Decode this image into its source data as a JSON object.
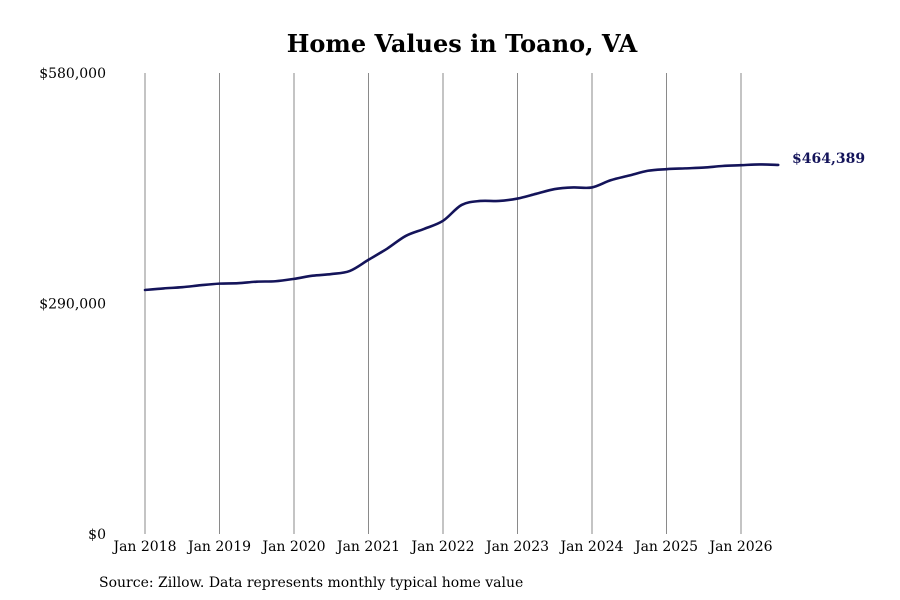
{
  "colors": {
    "line": "#14145a",
    "grid": "#8a8a8a",
    "background": "#ffffff"
  },
  "chart_data": {
    "type": "line",
    "title": "Home Values in Toano, VA",
    "xlabel": "",
    "ylabel": "",
    "source": "Source: Zillow. Data represents monthly typical home value",
    "x_tick_labels": [
      "Jan 2018",
      "Jan 2019",
      "Jan 2020",
      "Jan 2021",
      "Jan 2022",
      "Jan 2023",
      "Jan 2024",
      "Jan 2025",
      "Jan 2026"
    ],
    "y_tick_labels": [
      "$0",
      "$290,000",
      "$580,000"
    ],
    "y_ticks": [
      0,
      290000,
      580000
    ],
    "ylim": [
      0,
      580000
    ],
    "xlim": [
      "2018-01",
      "2026-07"
    ],
    "grid": "vertical lines at x ticks",
    "end_label": "$464,389",
    "series": [
      {
        "x": [
          "2018-01",
          "2018-04",
          "2018-07",
          "2018-10",
          "2019-01",
          "2019-04",
          "2019-07",
          "2019-10",
          "2020-01",
          "2020-04",
          "2020-07",
          "2020-10",
          "2021-01",
          "2021-04",
          "2021-07",
          "2021-10",
          "2022-01",
          "2022-04",
          "2022-07",
          "2022-10",
          "2023-01",
          "2023-04",
          "2023-07",
          "2023-10",
          "2024-01",
          "2024-04",
          "2024-07",
          "2024-10",
          "2025-01",
          "2025-04",
          "2025-07",
          "2025-10",
          "2026-01",
          "2026-04",
          "2026-07"
        ],
        "values": [
          307000,
          309000,
          310500,
          313000,
          315000,
          315500,
          317500,
          318000,
          321000,
          325000,
          327000,
          331000,
          345000,
          359000,
          375000,
          384000,
          394000,
          414000,
          419000,
          419000,
          422000,
          428000,
          434000,
          436000,
          436000,
          445000,
          451000,
          457000,
          459000,
          460000,
          461000,
          463000,
          464000,
          465000,
          464389
        ]
      }
    ]
  }
}
